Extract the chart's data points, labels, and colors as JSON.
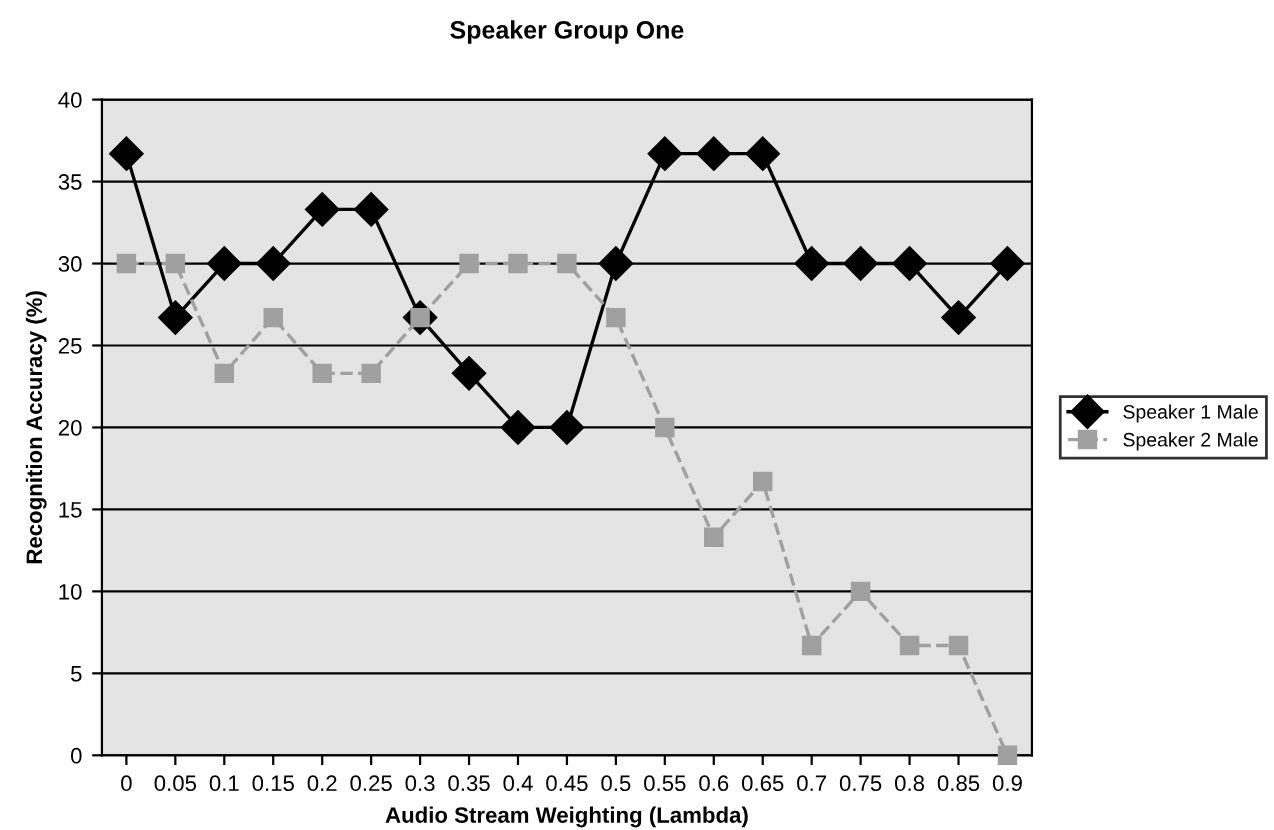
{
  "chart_data": {
    "type": "line",
    "title": "Speaker Group One",
    "xlabel": "Audio Stream Weighting (Lambda)",
    "ylabel": "Recognition Accuracy (%)",
    "categories": [
      "0",
      "0.05",
      "0.1",
      "0.15",
      "0.2",
      "0.25",
      "0.3",
      "0.35",
      "0.4",
      "0.45",
      "0.5",
      "0.55",
      "0.6",
      "0.65",
      "0.7",
      "0.75",
      "0.8",
      "0.85",
      "0.9"
    ],
    "series": [
      {
        "name": "Speaker 1 Male",
        "color": "#000000",
        "marker": "diamond",
        "line_style": "solid",
        "values": [
          36.7,
          26.7,
          30,
          30,
          33.3,
          33.3,
          26.7,
          23.3,
          20,
          20,
          30,
          36.7,
          36.7,
          36.7,
          30,
          30,
          30,
          26.7,
          30
        ]
      },
      {
        "name": "Speaker 2 Male",
        "color": "#a0a0a0",
        "marker": "square",
        "line_style": "dashed",
        "values": [
          30,
          30,
          23.3,
          26.7,
          23.3,
          23.3,
          26.7,
          30,
          30,
          30,
          26.7,
          20,
          13.3,
          16.7,
          6.7,
          10,
          6.7,
          6.7,
          0
        ]
      }
    ],
    "ylim": [
      0,
      40
    ],
    "yticks": [
      0,
      5,
      10,
      15,
      20,
      25,
      30,
      35,
      40
    ],
    "grid": "y",
    "legend": "right"
  }
}
